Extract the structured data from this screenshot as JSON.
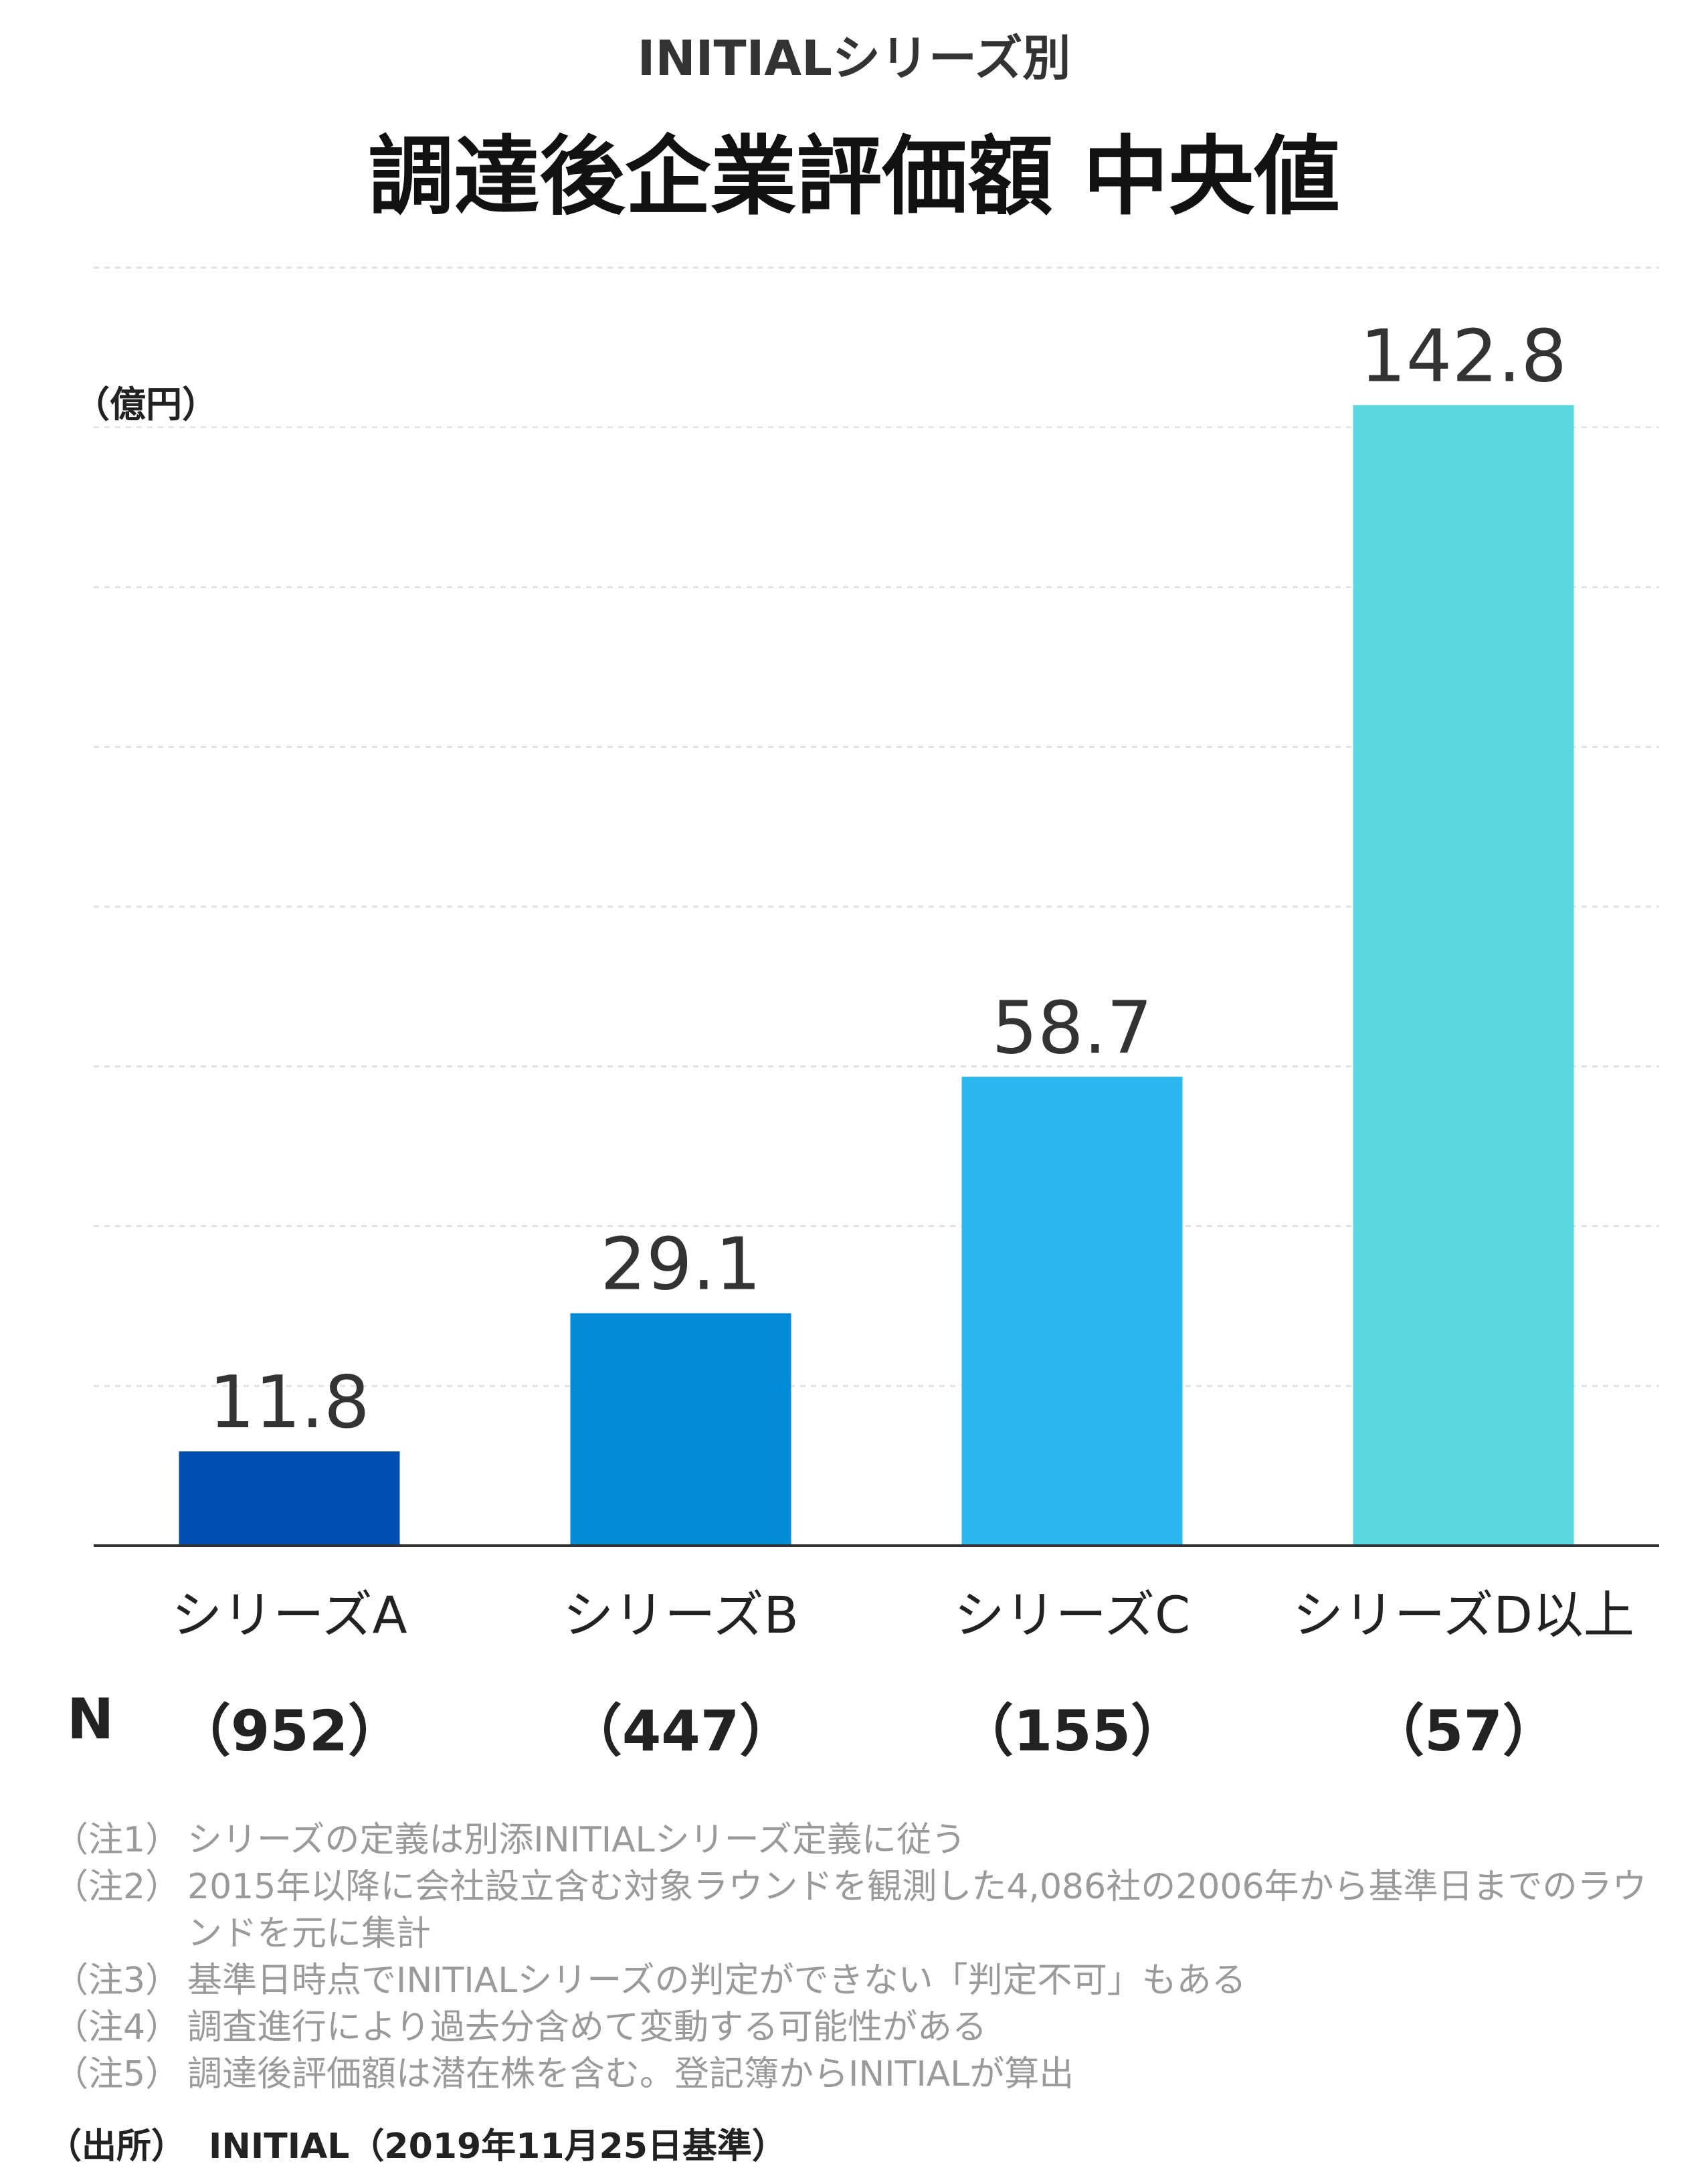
{
  "chart_data": {
    "type": "bar",
    "subtitle": "INITIALシリーズ別",
    "title": "調達後企業評価額 中央値",
    "ylabel": "（億円）",
    "categories": [
      "シリーズA",
      "シリーズB",
      "シリーズC",
      "シリーズD以上"
    ],
    "values": [
      11.8,
      29.1,
      58.7,
      142.8
    ],
    "value_labels": [
      "11.8",
      "29.1",
      "58.7",
      "142.8"
    ],
    "colors": [
      "#004fb0",
      "#008bd4",
      "#2cb8ee",
      "#5cd7e0"
    ],
    "ylim": [
      0,
      160
    ],
    "grid": true
  },
  "sample": {
    "label": "N",
    "counts": [
      "（952）",
      "（447）",
      "（155）",
      "（57）"
    ]
  },
  "notes": [
    {
      "label": "（注1）",
      "text": "シリーズの定義は別添INITIALシリーズ定義に従う"
    },
    {
      "label": "（注2）",
      "text": "2015年以降に会社設立含む対象ラウンドを観測した4,086社の2006年から基準日までのラウンドを元に集計"
    },
    {
      "label": "（注3）",
      "text": "基準日時点でINITIALシリーズの判定ができない「判定不可」もある"
    },
    {
      "label": "（注4）",
      "text": "調査進行により過去分含めて変動する可能性がある"
    },
    {
      "label": "（注5）",
      "text": "調達後評価額は潜在株を含む。登記簿からINITIALが算出"
    }
  ],
  "source": {
    "label": "（出所）",
    "text": "INITIAL（2019年11月25日基準）"
  }
}
